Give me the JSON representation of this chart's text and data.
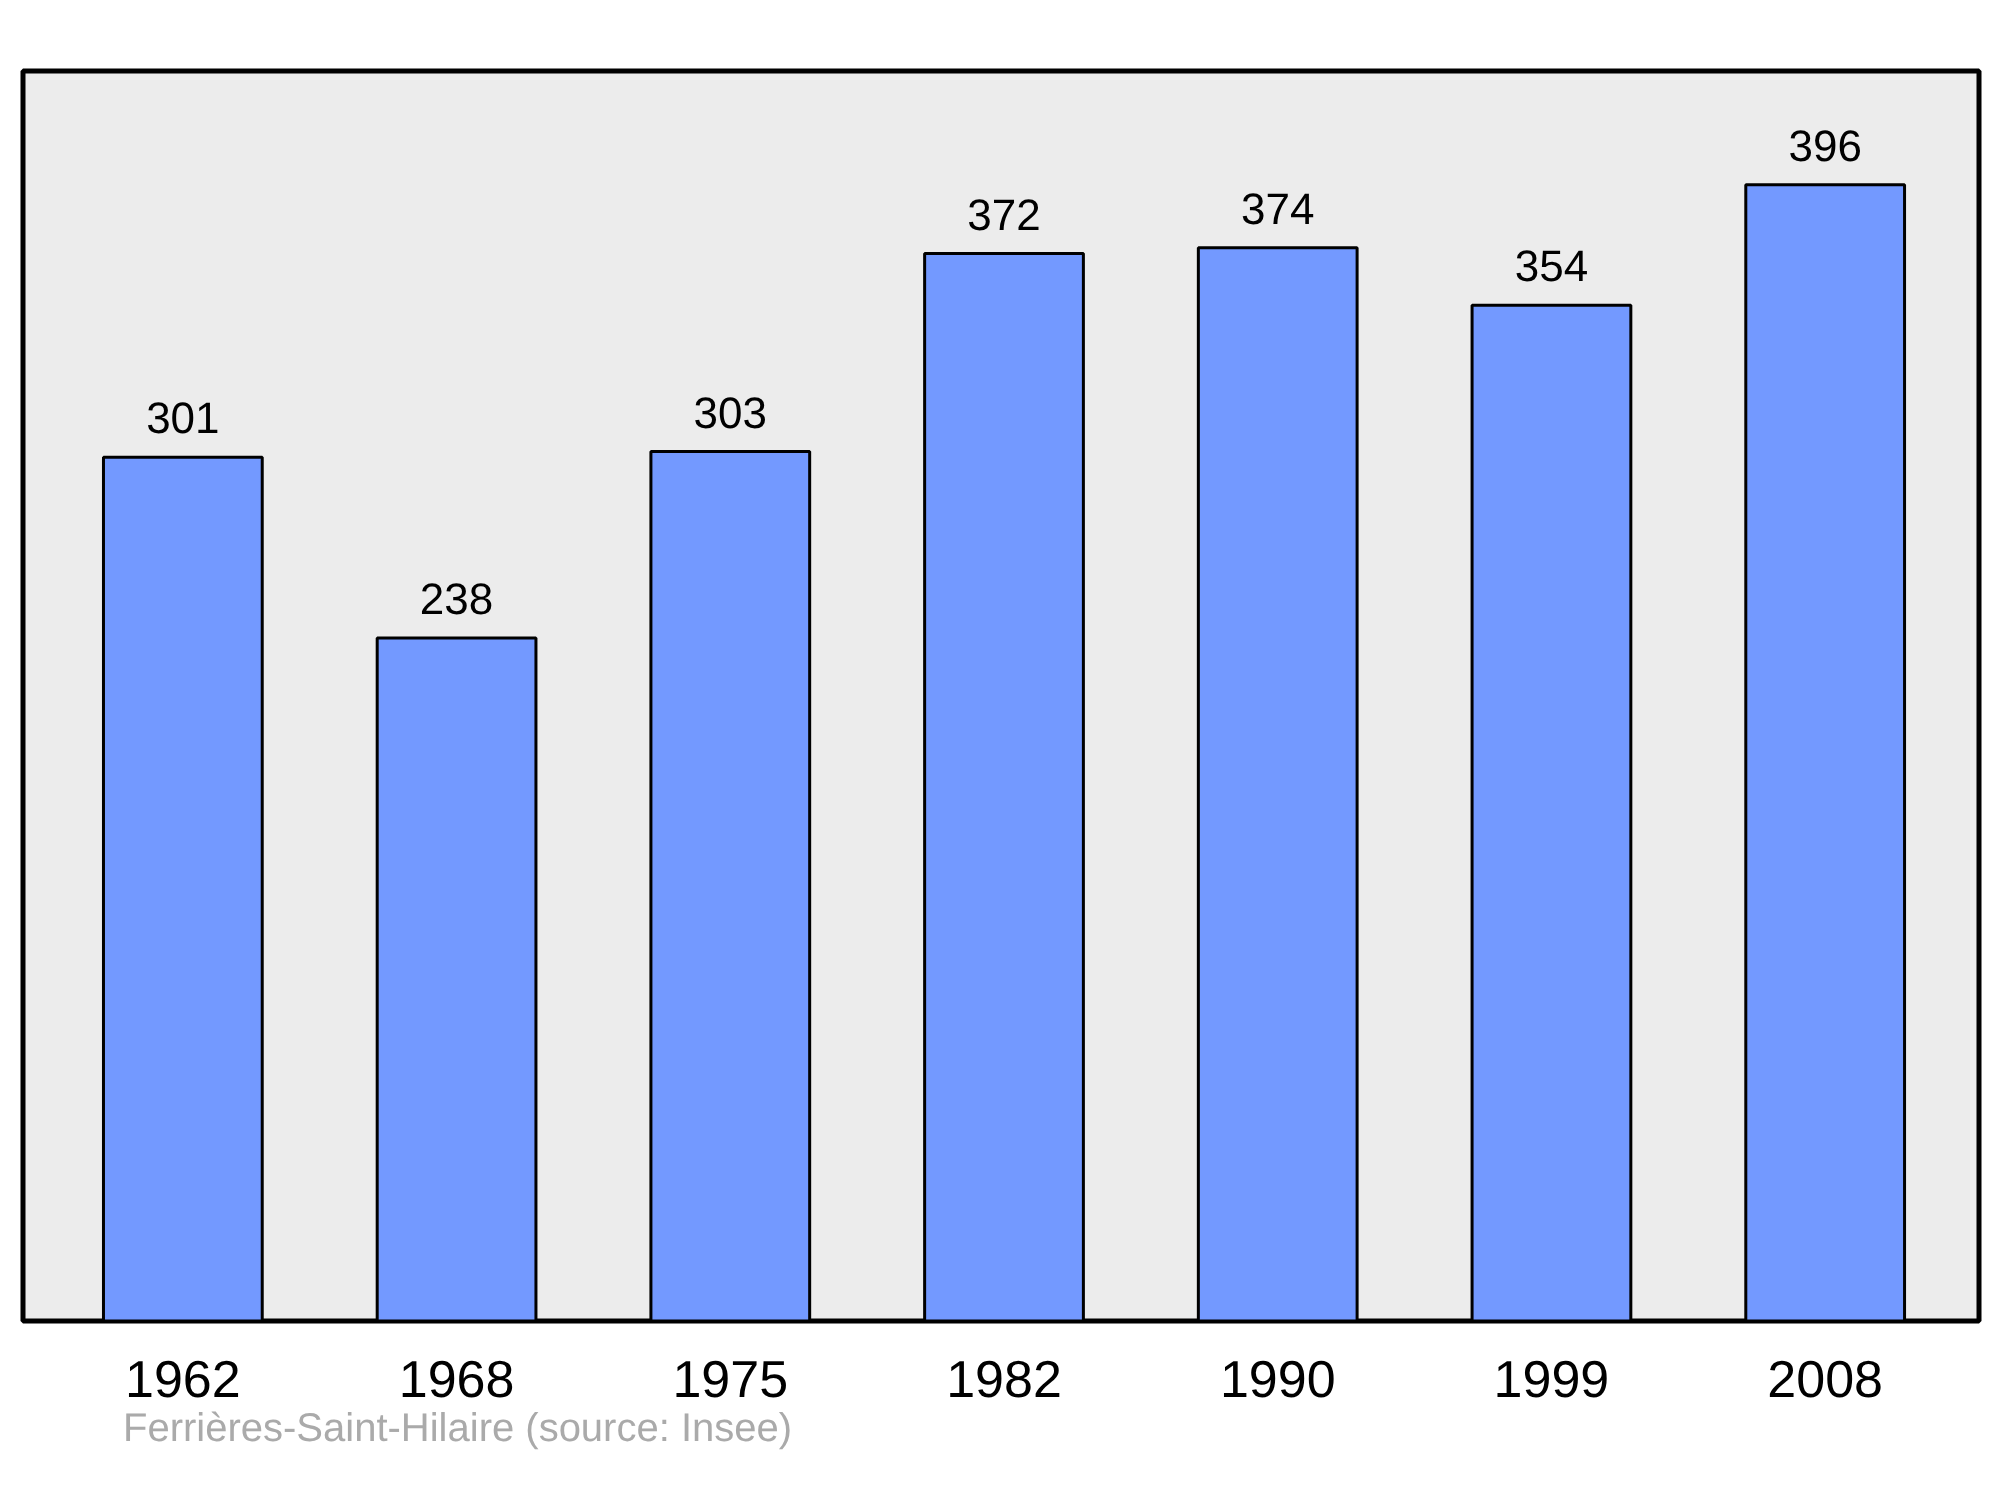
{
  "chart_data": {
    "type": "bar",
    "categories": [
      "1962",
      "1968",
      "1975",
      "1982",
      "1990",
      "1999",
      "2008"
    ],
    "values": [
      301,
      238,
      303,
      372,
      374,
      354,
      396
    ],
    "color": "#7399ff",
    "data_labels": true,
    "tick_labels": "x",
    "grid": false,
    "annotations": [
      "Ferrières-Saint-Hilaire    (source: Insee)"
    ]
  }
}
